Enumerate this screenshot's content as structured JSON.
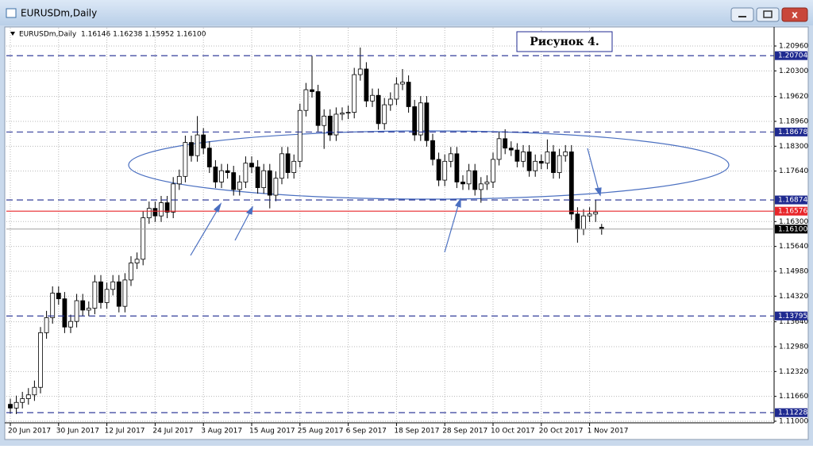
{
  "window": {
    "title": "EURUSDm,Daily"
  },
  "chart_data": {
    "type": "candlestick",
    "title": "EURUSDm,Daily",
    "ohlc_label": "1.16146 1.16238 1.15952 1.16100",
    "annotation": "Рисунок 4.",
    "categories": [
      "20 Jun 2017",
      null,
      null,
      null,
      null,
      null,
      null,
      null,
      "30 Jun 2017",
      null,
      null,
      null,
      null,
      null,
      null,
      null,
      "12 Jul 2017",
      null,
      null,
      null,
      null,
      null,
      null,
      null,
      "24 Jul 2017",
      null,
      null,
      null,
      null,
      null,
      null,
      null,
      "3 Aug 2017",
      null,
      null,
      null,
      null,
      null,
      null,
      null,
      "15 Aug 2017",
      null,
      null,
      null,
      null,
      null,
      null,
      null,
      "25 Aug 2017",
      null,
      null,
      null,
      null,
      null,
      null,
      null,
      "6 Sep 2017",
      null,
      null,
      null,
      null,
      null,
      null,
      null,
      "18 Sep 2017",
      null,
      null,
      null,
      null,
      null,
      null,
      null,
      "28 Sep 2017",
      null,
      null,
      null,
      null,
      null,
      null,
      null,
      "10 Oct 2017",
      null,
      null,
      null,
      null,
      null,
      null,
      null,
      "20 Oct 2017",
      null,
      null,
      null,
      null,
      null,
      null,
      null,
      "1 Nov 2017",
      null,
      null
    ],
    "open": [
      1.1145,
      1.1135,
      1.115,
      1.116,
      1.117,
      1.119,
      1.1335,
      1.1375,
      1.144,
      1.1425,
      1.135,
      1.1365,
      1.142,
      1.1395,
      1.14,
      1.147,
      1.1415,
      1.145,
      1.147,
      1.1405,
      1.1475,
      1.152,
      1.153,
      1.164,
      1.1665,
      1.1645,
      1.168,
      1.1655,
      1.173,
      1.175,
      1.184,
      1.1805,
      1.186,
      1.1825,
      1.1775,
      1.1735,
      1.1765,
      1.176,
      1.1715,
      1.1735,
      1.1785,
      1.1775,
      1.172,
      1.1765,
      1.17,
      1.1745,
      1.181,
      1.176,
      1.179,
      1.1925,
      1.198,
      1.1975,
      1.1885,
      1.191,
      1.186,
      1.1915,
      1.1918,
      1.192,
      1.202,
      1.2035,
      1.195,
      1.1965,
      1.189,
      1.194,
      1.1955,
      1.1995,
      1.2,
      1.1935,
      1.186,
      1.1945,
      1.1845,
      1.1795,
      1.174,
      1.179,
      1.181,
      1.1735,
      1.173,
      1.1765,
      1.1715,
      1.173,
      1.1735,
      1.1795,
      1.185,
      1.1825,
      1.182,
      1.179,
      1.1815,
      1.1765,
      1.179,
      1.1785,
      1.1815,
      1.176,
      1.1805,
      1.1815,
      1.165,
      1.161,
      1.1645,
      1.165,
      1.16146
    ],
    "high": [
      1.116,
      1.1168,
      1.1178,
      1.1188,
      1.1208,
      1.135,
      1.1393,
      1.1458,
      1.1458,
      1.1443,
      1.1383,
      1.1438,
      1.1438,
      1.1418,
      1.1488,
      1.1488,
      1.1468,
      1.1488,
      1.1488,
      1.1493,
      1.1538,
      1.1548,
      1.1658,
      1.1683,
      1.1683,
      1.1698,
      1.1698,
      1.1748,
      1.1768,
      1.1858,
      1.1858,
      1.191,
      1.1878,
      1.1843,
      1.1793,
      1.1783,
      1.1783,
      1.1778,
      1.1753,
      1.1803,
      1.1803,
      1.1793,
      1.1783,
      1.1783,
      1.1763,
      1.1828,
      1.1828,
      1.1808,
      1.1943,
      1.1998,
      1.207,
      1.1993,
      1.1928,
      1.1928,
      1.1933,
      1.1933,
      1.1938,
      1.2038,
      1.2092,
      1.2053,
      1.1983,
      1.1983,
      1.1958,
      1.1973,
      1.2013,
      1.2035,
      1.2018,
      1.1953,
      1.1963,
      1.1963,
      1.1863,
      1.1813,
      1.1808,
      1.1828,
      1.1828,
      1.1753,
      1.1783,
      1.1783,
      1.1748,
      1.1753,
      1.1813,
      1.1868,
      1.1875,
      1.1843,
      1.1838,
      1.1833,
      1.1833,
      1.1808,
      1.1808,
      1.1848,
      1.1833,
      1.1823,
      1.1833,
      1.1833,
      1.1668,
      1.1663,
      1.1668,
      1.1688,
      1.16238
    ],
    "low": [
      1.112,
      1.1119,
      1.1134,
      1.1144,
      1.1154,
      1.1174,
      1.1319,
      1.1359,
      1.1409,
      1.1334,
      1.1334,
      1.1349,
      1.1379,
      1.1379,
      1.1384,
      1.1399,
      1.1399,
      1.1434,
      1.1389,
      1.1389,
      1.1459,
      1.1504,
      1.1514,
      1.1624,
      1.1629,
      1.1629,
      1.1639,
      1.1639,
      1.1714,
      1.1734,
      1.1789,
      1.1789,
      1.1809,
      1.1759,
      1.1719,
      1.1719,
      1.1744,
      1.1699,
      1.1699,
      1.1719,
      1.1759,
      1.1704,
      1.1704,
      1.1665,
      1.1684,
      1.1729,
      1.1744,
      1.1744,
      1.1774,
      1.1909,
      1.1959,
      1.1869,
      1.1823,
      1.1844,
      1.1844,
      1.1899,
      1.1902,
      1.1904,
      1.2004,
      1.1934,
      1.1934,
      1.1874,
      1.1874,
      1.1924,
      1.1939,
      1.1979,
      1.1919,
      1.1844,
      1.1844,
      1.1829,
      1.1779,
      1.1724,
      1.1724,
      1.1774,
      1.1719,
      1.1714,
      1.1714,
      1.1699,
      1.168,
      1.1714,
      1.1719,
      1.1779,
      1.1809,
      1.1804,
      1.1774,
      1.1774,
      1.1749,
      1.1749,
      1.1769,
      1.1769,
      1.1744,
      1.1744,
      1.1789,
      1.1634,
      1.1574,
      1.1594,
      1.1629,
      1.1629,
      1.15952
    ],
    "close": [
      1.1135,
      1.115,
      1.116,
      1.117,
      1.119,
      1.1335,
      1.1375,
      1.144,
      1.1425,
      1.135,
      1.1365,
      1.142,
      1.1395,
      1.14,
      1.147,
      1.1415,
      1.145,
      1.147,
      1.1405,
      1.1475,
      1.152,
      1.153,
      1.164,
      1.1665,
      1.1645,
      1.168,
      1.1655,
      1.173,
      1.175,
      1.184,
      1.1805,
      1.186,
      1.1825,
      1.1775,
      1.1735,
      1.1765,
      1.176,
      1.1715,
      1.1735,
      1.1785,
      1.1775,
      1.172,
      1.1765,
      1.17,
      1.1745,
      1.181,
      1.176,
      1.179,
      1.1925,
      1.198,
      1.1975,
      1.1885,
      1.191,
      1.186,
      1.1915,
      1.1918,
      1.192,
      1.202,
      1.2035,
      1.195,
      1.1965,
      1.189,
      1.194,
      1.1955,
      1.1995,
      1.2,
      1.1935,
      1.186,
      1.1945,
      1.1845,
      1.1795,
      1.174,
      1.179,
      1.181,
      1.1735,
      1.173,
      1.1765,
      1.1715,
      1.173,
      1.1735,
      1.1795,
      1.185,
      1.1825,
      1.182,
      1.179,
      1.1815,
      1.1765,
      1.179,
      1.1785,
      1.1815,
      1.176,
      1.1805,
      1.1815,
      1.165,
      1.161,
      1.1645,
      1.165,
      1.1655,
      1.161
    ],
    "ylim": [
      1.11,
      1.2096
    ],
    "yticks": [
      {
        "value": 1.2096,
        "label": "1.20960"
      },
      {
        "value": 1.203,
        "label": "1.20300"
      },
      {
        "value": 1.1962,
        "label": "1.19620"
      },
      {
        "value": 1.1896,
        "label": "1.18960"
      },
      {
        "value": 1.183,
        "label": "1.18300"
      },
      {
        "value": 1.1764,
        "label": "1.17640"
      },
      {
        "value": 1.163,
        "label": "1.16300"
      },
      {
        "value": 1.1564,
        "label": "1.15640"
      },
      {
        "value": 1.1498,
        "label": "1.14980"
      },
      {
        "value": 1.1432,
        "label": "1.14320"
      },
      {
        "value": 1.1364,
        "label": "1.13640"
      },
      {
        "value": 1.1298,
        "label": "1.12980"
      },
      {
        "value": 1.1232,
        "label": "1.12320"
      },
      {
        "value": 1.1166,
        "label": "1.11660"
      },
      {
        "value": 1.11,
        "label": "1.11000"
      }
    ],
    "grid": true,
    "levels": [
      {
        "value": 1.20704,
        "label": "1.20704",
        "color": "#1f2a90",
        "style": "dashed"
      },
      {
        "value": 1.18678,
        "label": "1.18678",
        "color": "#1f2a90",
        "style": "dashed"
      },
      {
        "value": 1.16874,
        "label": "1.16874",
        "color": "#1f2a90",
        "style": "dashed"
      },
      {
        "value": 1.13795,
        "label": "1.13795",
        "color": "#1f2a90",
        "style": "dashed"
      },
      {
        "value": 1.11228,
        "label": "1.11228",
        "color": "#1f2a90",
        "style": "dashed"
      },
      {
        "value": 1.16576,
        "label": "1.16576",
        "color": "#e8262a",
        "style": "solid"
      }
    ],
    "current_price": {
      "value": 1.161,
      "label": "1.16100"
    }
  }
}
